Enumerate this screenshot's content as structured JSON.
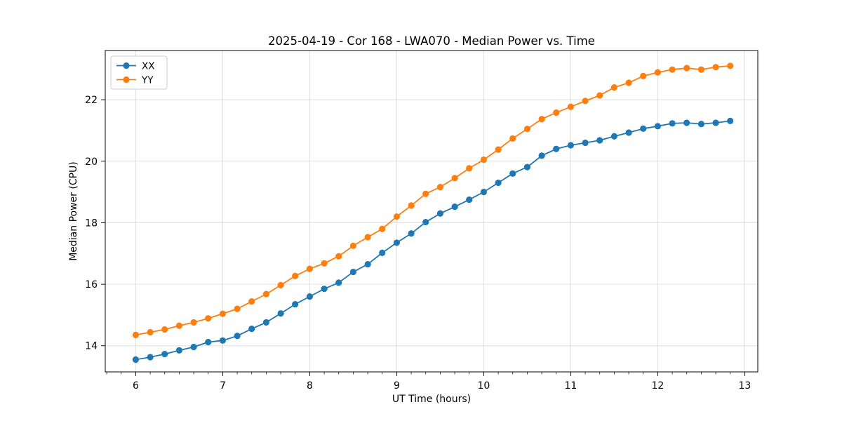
{
  "chart_data": {
    "type": "line",
    "title": "2025-04-19 - Cor 168 - LWA070 - Median Power vs. Time",
    "xlabel": "UT Time (hours)",
    "ylabel": "Median Power (CPU)",
    "xlim": [
      5.65,
      13.15
    ],
    "ylim": [
      13.15,
      23.6
    ],
    "xticks": [
      6,
      7,
      8,
      9,
      10,
      11,
      12,
      13
    ],
    "yticks": [
      14,
      16,
      18,
      20,
      22
    ],
    "x_minor_tick_step_hours": 0.1667,
    "grid": true,
    "legend_position": "upper-left",
    "marker": "circle",
    "colors": {
      "XX": "#1f77b4",
      "YY": "#ff7f0e",
      "grid": "#dddddd",
      "spine": "#000000"
    },
    "x": [
      6,
      6.167,
      6.333,
      6.5,
      6.667,
      6.833,
      7,
      7.167,
      7.333,
      7.5,
      7.667,
      7.833,
      8,
      8.167,
      8.333,
      8.5,
      8.667,
      8.833,
      9,
      9.167,
      9.333,
      9.5,
      9.667,
      9.833,
      10,
      10.167,
      10.333,
      10.5,
      10.667,
      10.833,
      11,
      11.167,
      11.333,
      11.5,
      11.667,
      11.833,
      12,
      12.167,
      12.333,
      12.5,
      12.667,
      12.833
    ],
    "series": [
      {
        "name": "XX",
        "color": "#1f77b4",
        "values": [
          13.55,
          13.63,
          13.73,
          13.85,
          13.96,
          14.12,
          14.17,
          14.32,
          14.55,
          14.76,
          15.05,
          15.35,
          15.6,
          15.85,
          16.05,
          16.4,
          16.65,
          17.02,
          17.35,
          17.65,
          18.02,
          18.3,
          18.52,
          18.75,
          19.0,
          19.3,
          19.6,
          19.81,
          20.18,
          20.4,
          20.52,
          20.6,
          20.68,
          20.81,
          20.93,
          21.06,
          21.14,
          21.23,
          21.25,
          21.21,
          21.25,
          21.31
        ]
      },
      {
        "name": "YY",
        "color": "#ff7f0e",
        "values": [
          14.35,
          14.44,
          14.53,
          14.65,
          14.76,
          14.89,
          15.04,
          15.2,
          15.44,
          15.68,
          15.97,
          16.27,
          16.5,
          16.68,
          16.91,
          17.25,
          17.53,
          17.8,
          18.2,
          18.56,
          18.94,
          19.16,
          19.45,
          19.77,
          20.05,
          20.38,
          20.74,
          21.05,
          21.37,
          21.58,
          21.77,
          21.96,
          22.14,
          22.4,
          22.55,
          22.77,
          22.89,
          22.98,
          23.03,
          22.98,
          23.06,
          23.1
        ]
      }
    ],
    "legend": [
      "XX",
      "YY"
    ]
  }
}
